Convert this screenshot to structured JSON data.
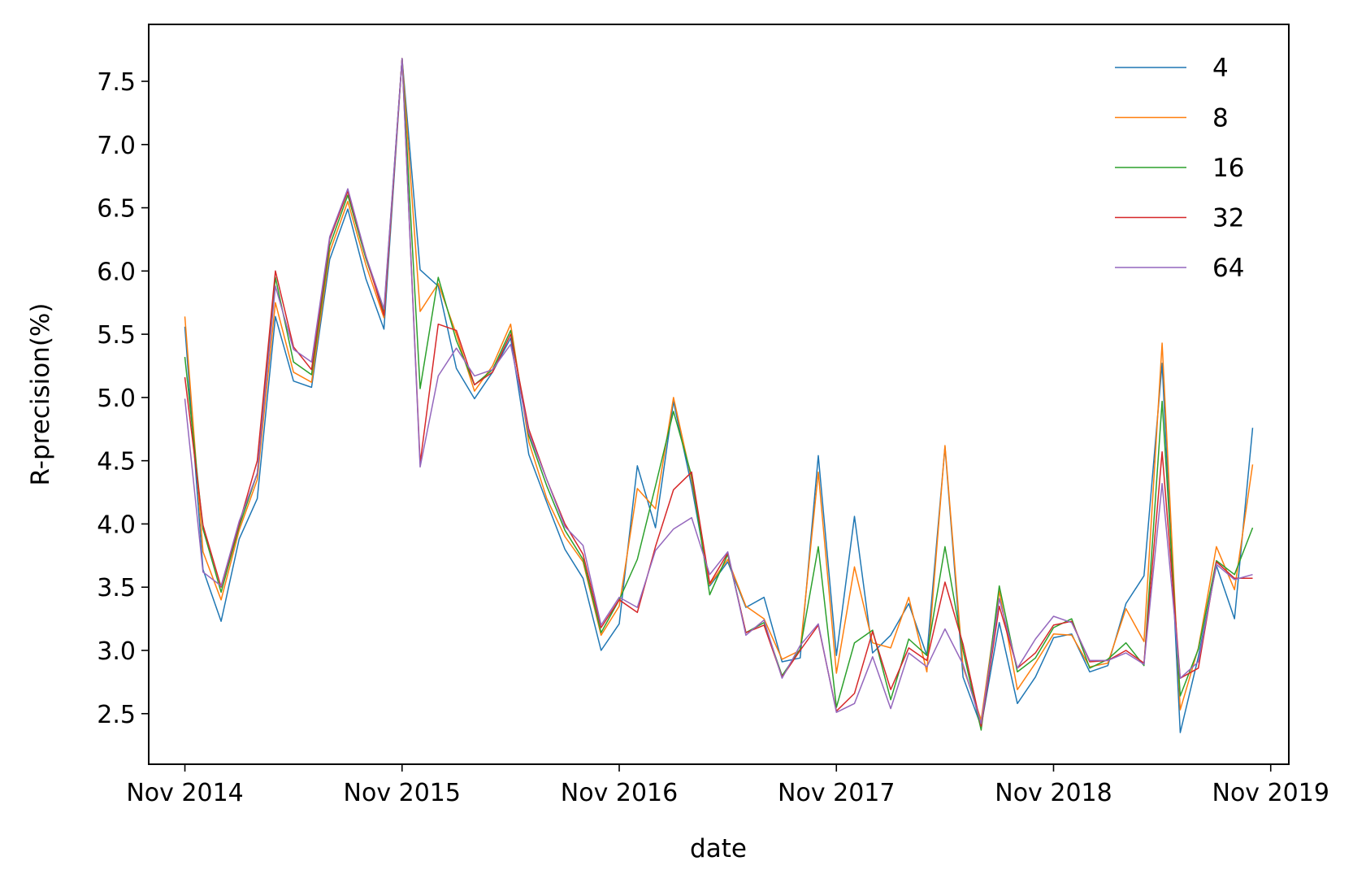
{
  "chart_data": {
    "type": "line",
    "xlabel": "date",
    "ylabel": "R-precision(%)",
    "x_tick_labels": [
      "Nov 2014",
      "Nov 2015",
      "Nov 2016",
      "Nov 2017",
      "Nov 2018",
      "Nov 2019"
    ],
    "x_tick_dates": [
      "2014-11",
      "2015-11",
      "2016-11",
      "2017-11",
      "2018-11",
      "2019-11"
    ],
    "xlim": [
      "2014-09",
      "2019-12"
    ],
    "y_ticks": [
      2.5,
      3.0,
      3.5,
      4.0,
      4.5,
      5.0,
      5.5,
      6.0,
      6.5,
      7.0,
      7.5
    ],
    "y_tick_labels": [
      "2.5",
      "3.0",
      "3.5",
      "4.0",
      "4.5",
      "5.0",
      "5.5",
      "6.0",
      "6.5",
      "7.0",
      "7.5"
    ],
    "ylim": [
      2.1,
      7.95
    ],
    "grid": false,
    "legend_position": "top-right",
    "x": [
      "2014-11",
      "2014-12",
      "2015-01",
      "2015-02",
      "2015-03",
      "2015-04",
      "2015-05",
      "2015-06",
      "2015-07",
      "2015-08",
      "2015-09",
      "2015-10",
      "2015-11",
      "2015-12",
      "2016-01",
      "2016-02",
      "2016-03",
      "2016-04",
      "2016-05",
      "2016-06",
      "2016-07",
      "2016-08",
      "2016-09",
      "2016-10",
      "2016-11",
      "2016-12",
      "2017-01",
      "2017-02",
      "2017-03",
      "2017-04",
      "2017-05",
      "2017-06",
      "2017-07",
      "2017-08",
      "2017-09",
      "2017-10",
      "2017-11",
      "2017-12",
      "2018-01",
      "2018-02",
      "2018-03",
      "2018-04",
      "2018-05",
      "2018-06",
      "2018-07",
      "2018-08",
      "2018-09",
      "2018-10",
      "2018-11",
      "2018-12",
      "2019-01",
      "2019-02",
      "2019-03",
      "2019-04",
      "2019-05",
      "2019-06",
      "2019-07",
      "2019-08",
      "2019-09",
      "2019-10"
    ],
    "series": [
      {
        "name": "4",
        "color": "#1f77b4",
        "values": [
          5.56,
          3.64,
          3.23,
          3.88,
          4.2,
          5.64,
          5.13,
          5.08,
          6.09,
          6.49,
          5.94,
          5.54,
          7.68,
          6.01,
          5.88,
          5.23,
          4.99,
          5.2,
          5.47,
          4.55,
          4.17,
          3.8,
          3.57,
          3.0,
          3.21,
          4.46,
          3.97,
          4.97,
          4.3,
          3.51,
          3.7,
          3.34,
          3.42,
          2.91,
          2.94,
          4.54,
          2.96,
          4.06,
          2.98,
          3.12,
          3.37,
          2.96,
          4.61,
          2.79,
          2.4,
          3.22,
          2.58,
          2.79,
          3.1,
          3.13,
          2.83,
          2.88,
          3.37,
          3.59,
          5.27,
          2.35,
          2.95,
          3.67,
          3.25,
          4.76
        ]
      },
      {
        "name": "8",
        "color": "#ff7f0e",
        "values": [
          5.64,
          3.78,
          3.4,
          3.95,
          4.35,
          5.75,
          5.2,
          5.12,
          6.15,
          6.55,
          6.05,
          5.63,
          7.68,
          5.68,
          5.9,
          5.5,
          5.05,
          5.25,
          5.58,
          4.65,
          4.2,
          3.9,
          3.7,
          3.12,
          3.35,
          4.28,
          4.12,
          5.0,
          4.35,
          3.52,
          3.72,
          3.35,
          3.25,
          2.93,
          3.0,
          4.41,
          2.82,
          3.66,
          3.06,
          3.02,
          3.42,
          2.83,
          4.62,
          2.87,
          2.45,
          3.47,
          2.69,
          2.9,
          3.13,
          3.12,
          2.87,
          2.9,
          3.33,
          3.07,
          5.43,
          2.53,
          3.02,
          3.82,
          3.48,
          4.47
        ]
      },
      {
        "name": "16",
        "color": "#2ca02c",
        "values": [
          5.32,
          3.96,
          3.46,
          3.98,
          4.4,
          5.95,
          5.28,
          5.18,
          6.2,
          6.6,
          6.1,
          5.68,
          7.68,
          5.07,
          5.95,
          5.45,
          5.1,
          5.22,
          5.53,
          4.7,
          4.3,
          3.95,
          3.72,
          3.14,
          3.4,
          3.72,
          4.3,
          4.89,
          4.38,
          3.44,
          3.76,
          3.14,
          3.22,
          2.8,
          3.01,
          3.82,
          2.55,
          3.06,
          3.16,
          2.61,
          3.09,
          2.96,
          3.82,
          3.0,
          2.37,
          3.51,
          2.83,
          2.94,
          3.18,
          3.25,
          2.86,
          2.93,
          3.06,
          2.88,
          4.97,
          2.64,
          3.01,
          3.71,
          3.6,
          3.97
        ]
      },
      {
        "name": "32",
        "color": "#d62728",
        "values": [
          5.16,
          3.99,
          3.5,
          4.0,
          4.5,
          6.0,
          5.4,
          5.22,
          6.25,
          6.63,
          6.12,
          5.65,
          7.68,
          4.48,
          5.58,
          5.53,
          5.1,
          5.2,
          5.5,
          4.75,
          4.35,
          4.0,
          3.76,
          3.18,
          3.4,
          3.3,
          3.82,
          4.27,
          4.41,
          3.53,
          3.77,
          3.14,
          3.2,
          2.79,
          3.0,
          3.2,
          2.52,
          2.66,
          3.15,
          2.69,
          3.02,
          2.92,
          3.54,
          3.05,
          2.4,
          3.35,
          2.86,
          2.98,
          3.2,
          3.23,
          2.91,
          2.92,
          3.0,
          2.9,
          4.57,
          2.78,
          2.86,
          3.7,
          3.57,
          3.57
        ]
      },
      {
        "name": "64",
        "color": "#9467bd",
        "values": [
          4.99,
          3.62,
          3.51,
          4.02,
          4.4,
          5.88,
          5.38,
          5.28,
          6.27,
          6.65,
          6.12,
          5.7,
          7.68,
          4.45,
          5.17,
          5.39,
          5.17,
          5.22,
          5.42,
          4.72,
          4.35,
          3.98,
          3.83,
          3.2,
          3.42,
          3.34,
          3.79,
          3.96,
          4.05,
          3.6,
          3.78,
          3.12,
          3.24,
          2.78,
          3.04,
          3.21,
          2.51,
          2.58,
          2.95,
          2.54,
          2.98,
          2.87,
          3.17,
          2.89,
          2.42,
          3.41,
          2.86,
          3.09,
          3.27,
          3.22,
          2.92,
          2.92,
          2.98,
          2.89,
          4.32,
          2.78,
          2.91,
          3.68,
          3.56,
          3.6
        ]
      }
    ]
  }
}
